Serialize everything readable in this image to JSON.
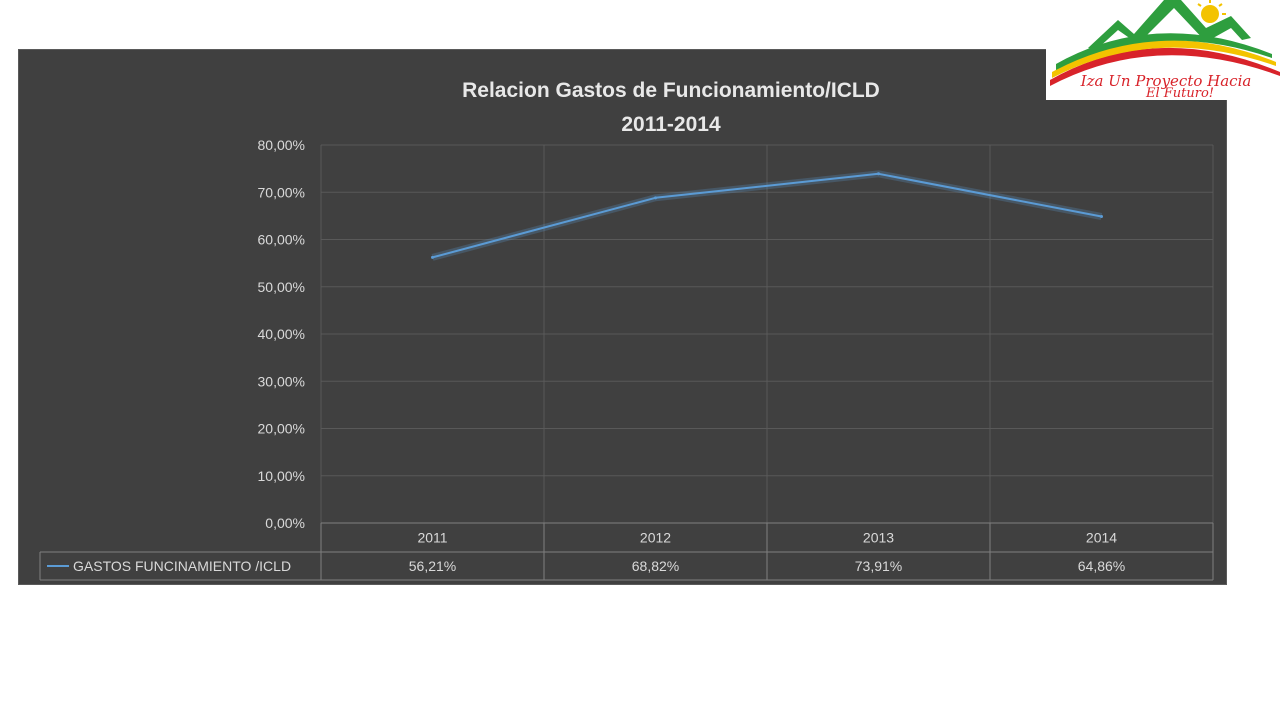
{
  "chart_data": {
    "type": "line",
    "title": "Relacion Gastos de Funcionamiento/ICLD",
    "subtitle": "2011-2014",
    "categories": [
      "2011",
      "2012",
      "2013",
      "2014"
    ],
    "series": [
      {
        "name": "GASTOS FUNCINAMIENTO /ICLD",
        "values": [
          56.21,
          68.82,
          73.91,
          64.86
        ],
        "labels": [
          "56,21%",
          "68,82%",
          "73,91%",
          "64,86%"
        ]
      }
    ],
    "ylim": [
      0,
      80
    ],
    "yticks": [
      "0,00%",
      "10,00%",
      "20,00%",
      "30,00%",
      "40,00%",
      "50,00%",
      "60,00%",
      "70,00%",
      "80,00%"
    ],
    "xlabel": "",
    "ylabel": "",
    "grid": true,
    "legend": "data-table-left",
    "colors": {
      "line": "#5b9bd5",
      "background": "#404040",
      "grid": "#595959",
      "text": "#d9d9d9"
    }
  },
  "logo": {
    "text_line1": "Iza Un Proyecto Hacia",
    "text_line2": "El Futuro!",
    "colors": {
      "green": "#2e9e3e",
      "yellow": "#f3c300",
      "red": "#d8232a"
    }
  }
}
